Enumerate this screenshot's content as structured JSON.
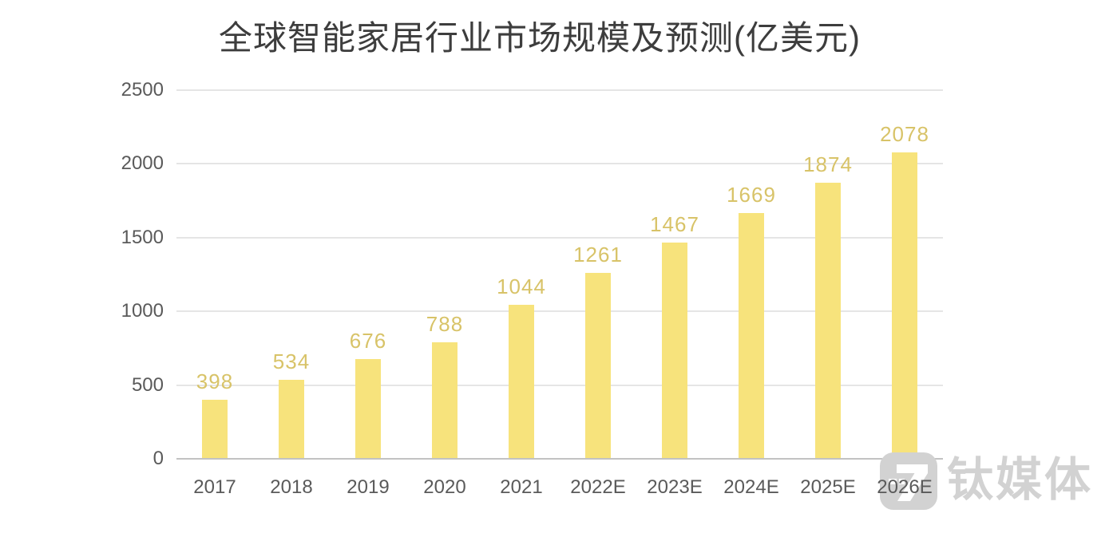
{
  "chart_data": {
    "type": "bar",
    "title": "全球智能家居行业市场规模及预测(亿美元)",
    "categories": [
      "2017",
      "2018",
      "2019",
      "2020",
      "2021",
      "2022E",
      "2023E",
      "2024E",
      "2025E",
      "2026E"
    ],
    "values": [
      398,
      534,
      676,
      788,
      1044,
      1261,
      1467,
      1669,
      1874,
      2078
    ],
    "xlabel": "",
    "ylabel": "",
    "ylim": [
      0,
      2500
    ],
    "yticks": [
      0,
      500,
      1000,
      1500,
      2000,
      2500
    ],
    "grid": "horizontal",
    "legend": "none",
    "value_labels_shown": true,
    "bar_color": "#F7E37C",
    "value_label_color": "#D8C368"
  },
  "watermark": {
    "text": "钛媒体",
    "logo_icon": "tmtpost-logo"
  },
  "colors": {
    "background": "#FFFFFF",
    "title_text": "#3D3D3D",
    "axis_text": "#5A5A5A",
    "gridline": "#E5E5E5",
    "axis_line": "#C2C2C2",
    "watermark": "#D2D2D2"
  }
}
